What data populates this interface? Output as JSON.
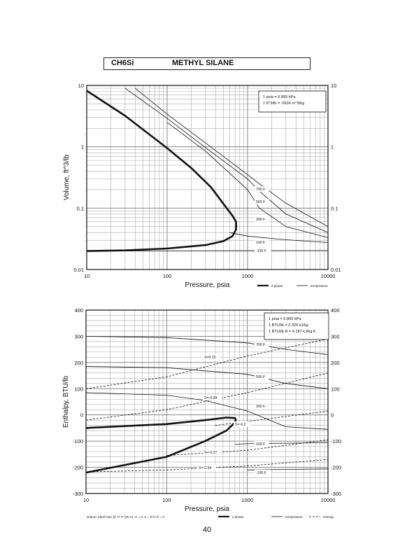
{
  "header": {
    "formula": "CH6Si",
    "name": "METHYL SILANE"
  },
  "page_number": "40",
  "chart_data": [
    {
      "type": "line",
      "xlabel": "Pressure,  psia",
      "ylabel": "Volume, ft^3/lb",
      "x_scale": "log",
      "y_scale": "log",
      "xlim": [
        10,
        10000
      ],
      "ylim": [
        0.01,
        10
      ],
      "x_ticks": [
        "10",
        "100",
        "1000",
        "10000"
      ],
      "y_ticks_left": [
        "0.01",
        "0.1",
        "1",
        "10"
      ],
      "y_ticks_right": [
        "0.01",
        "0.1",
        "1",
        "10"
      ],
      "grid": true,
      "note_lines": [
        "1 psia = 6.895 kPa",
        "1 ft^3/lb = .0624 m^3/kg"
      ],
      "legend": [
        {
          "label": "2 phase",
          "style": "thick"
        },
        {
          "label": "temperature",
          "style": "thin"
        }
      ],
      "series": [
        {
          "name": "2 phase",
          "x": [
            10,
            30,
            100,
            200,
            350,
            550,
            650,
            720,
            720,
            650,
            500,
            300,
            100,
            30,
            10
          ],
          "y": [
            8.2,
            3.2,
            0.95,
            0.45,
            0.22,
            0.1,
            0.075,
            0.06,
            0.045,
            0.035,
            0.029,
            0.025,
            0.022,
            0.0205,
            0.02
          ]
        },
        {
          "name": "-100 F",
          "x": [
            10,
            100,
            1000,
            10000
          ],
          "y": [
            0.02,
            0.0201,
            0.0202,
            0.0203
          ]
        },
        {
          "name": "100 F",
          "x": [
            600,
            1000,
            3000,
            10000
          ],
          "y": [
            0.04,
            0.035,
            0.0305,
            0.0275
          ]
        },
        {
          "name": "300 F",
          "x": [
            100,
            300,
            1000,
            1400,
            3000,
            10000
          ],
          "y": [
            2.5,
            0.85,
            0.2,
            0.1,
            0.05,
            0.033
          ]
        },
        {
          "name": "500 F",
          "x": [
            30,
            100,
            300,
            1000,
            1400,
            3000,
            10000
          ],
          "y": [
            9.0,
            2.9,
            0.97,
            0.3,
            0.19,
            0.08,
            0.04
          ]
        },
        {
          "name": "700 F",
          "x": [
            40,
            100,
            300,
            1000,
            1400,
            3000,
            10000
          ],
          "y": [
            9.0,
            3.4,
            1.15,
            0.35,
            0.25,
            0.12,
            0.05
          ]
        }
      ],
      "curve_labels": [
        {
          "text": "700 F"
        },
        {
          "text": "500 F"
        },
        {
          "text": "300 F"
        },
        {
          "text": "100 F"
        },
        {
          "text": "-100 F"
        }
      ]
    },
    {
      "type": "line",
      "xlabel": "Pressure,  psia",
      "ylabel": "Enthalpy, BTU/lb",
      "x_scale": "log",
      "xlim": [
        10,
        10000
      ],
      "ylim": [
        -300,
        400
      ],
      "x_ticks": [
        "10",
        "100",
        "1000",
        "10000"
      ],
      "y_ticks_left": [
        "-300",
        "-200",
        "-100",
        "0",
        "100",
        "200",
        "300",
        "400"
      ],
      "y_ticks_right": [
        "-300",
        "-200",
        "-100",
        "0",
        "100",
        "200",
        "300",
        "400"
      ],
      "grid": true,
      "note_lines": [
        "1 psia = 6.895 kPa",
        "1 BTU/lb = 2.326 kJ/kg",
        "1 BTU/lb R = 4.187 kJ/kg K"
      ],
      "datum": "Datum: Ideal Gas @ 77 F (25 C),  H = 0,  S = R ln P = 0",
      "legend": [
        {
          "label": "2 phase",
          "style": "thick"
        },
        {
          "label": "temperature",
          "style": "thin"
        },
        {
          "label": "entropy",
          "style": "dashed"
        }
      ],
      "series": [
        {
          "name": "2 phase",
          "x": [
            10,
            100,
            300,
            550,
            700,
            720,
            700,
            550,
            300,
            100,
            10
          ],
          "y": [
            -50,
            -35,
            -20,
            -10,
            -12,
            -18,
            -30,
            -60,
            -100,
            -160,
            -220
          ]
        },
        {
          "name": "-100 F",
          "x": [
            1000,
            3000,
            10000
          ],
          "y": [
            -210,
            -208,
            -206
          ]
        },
        {
          "name": "100 F",
          "x": [
            700,
            1000,
            3000,
            10000
          ],
          "y": [
            -112,
            -110,
            -108,
            -106
          ]
        },
        {
          "name": "300 F",
          "x": [
            10,
            100,
            300,
            1000,
            3000,
            10000
          ],
          "y": [
            85,
            75,
            55,
            15,
            -45,
            -55
          ]
        },
        {
          "name": "500 F",
          "x": [
            10,
            100,
            1000,
            3000,
            10000
          ],
          "y": [
            185,
            180,
            155,
            120,
            100
          ]
        },
        {
          "name": "700 F",
          "x": [
            10,
            100,
            1000,
            3000,
            10000
          ],
          "y": [
            300,
            295,
            275,
            250,
            230
          ]
        },
        {
          "name": "S=0.15",
          "x": [
            10,
            100,
            1000,
            10000
          ],
          "y": [
            100,
            145,
            225,
            290
          ]
        },
        {
          "name": "S=-0.08",
          "x": [
            10,
            100,
            1000,
            10000
          ],
          "y": [
            -20,
            20,
            85,
            160
          ]
        },
        {
          "name": "S=-0.2",
          "x": [
            400,
            1000,
            10000
          ],
          "y": [
            -40,
            -25,
            15
          ]
        },
        {
          "name": "S=-0.37",
          "x": [
            100,
            1000,
            10000
          ],
          "y": [
            -155,
            -135,
            -95
          ]
        },
        {
          "name": "S=-0.54",
          "x": [
            10,
            100,
            1000,
            10000
          ],
          "y": [
            -218,
            -210,
            -195,
            -170
          ]
        }
      ],
      "curve_labels": [
        {
          "text": "700 F"
        },
        {
          "text": "500 F"
        },
        {
          "text": "300 F"
        },
        {
          "text": "100 F"
        },
        {
          "text": "-100 F"
        },
        {
          "text": "S=0.15"
        },
        {
          "text": "S=-0.08"
        },
        {
          "text": "S=-0.2"
        },
        {
          "text": "S=-0.37"
        },
        {
          "text": "S=-0.54"
        }
      ]
    }
  ]
}
